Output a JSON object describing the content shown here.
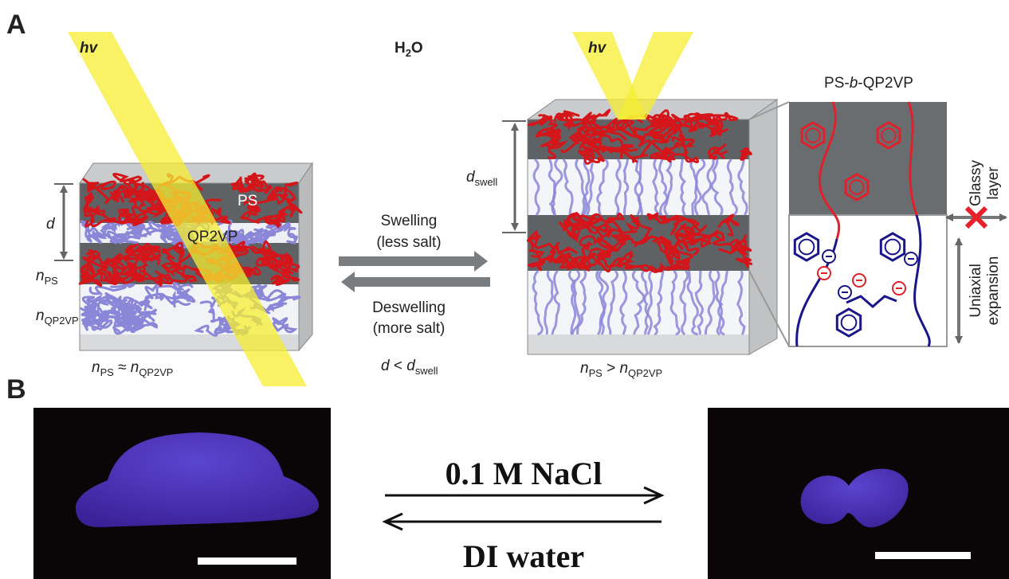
{
  "panel_a": {
    "label": "A",
    "left_light": "hv",
    "solvent": [
      {
        "text": "H"
      },
      {
        "text": "2",
        "style": "sub"
      },
      {
        "text": "O"
      }
    ],
    "layer_ps": "PS",
    "layer_qp2vp": "QP2VP",
    "spacing": [
      {
        "text": "d",
        "style": "italic"
      }
    ],
    "index_ps": [
      {
        "text": "n",
        "style": "italic"
      },
      {
        "text": "PS",
        "style": "sub"
      }
    ],
    "index_qp2vp": [
      {
        "text": "n",
        "style": "italic"
      },
      {
        "text": "QP2VP",
        "style": "sub"
      }
    ],
    "left_relation": [
      {
        "text": "n",
        "style": "italic"
      },
      {
        "text": "PS",
        "style": "sub"
      },
      {
        "text": " ≈ "
      },
      {
        "text": "n",
        "style": "italic"
      },
      {
        "text": "QP2VP",
        "style": "sub"
      }
    ],
    "forward": [
      "Swelling",
      "(less salt)"
    ],
    "backward": [
      "Deswelling",
      "(more salt)"
    ],
    "spacing_relation": [
      {
        "text": "d",
        "style": "italic"
      },
      {
        "text": " < "
      },
      {
        "text": "d",
        "style": "italic"
      },
      {
        "text": "swell",
        "style": "sub"
      }
    ],
    "right_light": "hv",
    "swollen_spacing": [
      {
        "text": "d",
        "style": "italic"
      },
      {
        "text": "swell",
        "style": "sub"
      }
    ],
    "right_relation": [
      {
        "text": "n",
        "style": "italic"
      },
      {
        "text": "PS",
        "style": "sub"
      },
      {
        "text": " > "
      },
      {
        "text": "n",
        "style": "italic"
      },
      {
        "text": "QP2VP",
        "style": "sub"
      }
    ],
    "inset_title": [
      {
        "text": "PS-"
      },
      {
        "text": "b",
        "style": "italic"
      },
      {
        "text": "-QP2VP"
      }
    ],
    "glassy": [
      "Glassy",
      "layer"
    ],
    "uniaxial": [
      "Uniaxial",
      "expansion"
    ]
  },
  "panel_b": {
    "label": "B",
    "forward": "0.1 M NaCl",
    "backward": "DI water"
  }
}
